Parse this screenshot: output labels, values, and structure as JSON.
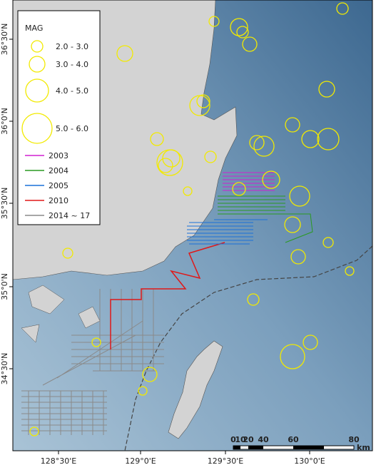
{
  "map": {
    "legend": {
      "title": "MAG",
      "magnitude_classes": [
        "2.0 - 3.0",
        "3.0 - 4.0",
        "4.0 - 5.0",
        "5.0 - 6.0"
      ],
      "surveys": [
        {
          "label": "2003",
          "color": "#d020d0"
        },
        {
          "label": "2004",
          "color": "#2a9a20"
        },
        {
          "label": "2005",
          "color": "#1a70d8"
        },
        {
          "label": "2010",
          "color": "#e01818"
        },
        {
          "label": "2014 ~ 17",
          "color": "#8a8a8a"
        }
      ]
    },
    "longitude_labels": [
      "128°30'E",
      "129°0'E",
      "129°30'E",
      "130°0'E"
    ],
    "latitude_labels": [
      "36°30'N",
      "36°0'N",
      "35°30'N",
      "35°0'N",
      "34°30'N"
    ],
    "scale_bar": {
      "labels": [
        "0",
        "10",
        "20",
        "40",
        "60",
        "80"
      ],
      "unit": "km"
    }
  }
}
